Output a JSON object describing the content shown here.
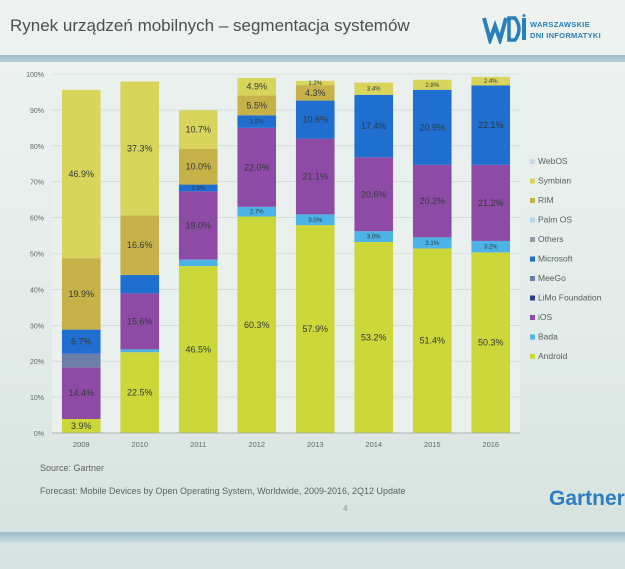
{
  "slide": {
    "title": "Rynek urządzeń mobilnych – segmentacja systemów",
    "logo_text_1": "WARSZAWSKIE",
    "logo_text_2": "DNI INFORMATYKI",
    "source": "Source: Gartner",
    "caption": "Forecast: Mobile Devices by Open Operating System, Worldwide, 2009-2016, 2Q12 Update",
    "brand": "Gartner",
    "page_number": "4",
    "colors": {
      "title_rule": "#9bbfc9",
      "brand": "#2b7dc0"
    }
  },
  "chart_data": {
    "type": "bar",
    "stacked": true,
    "categories": [
      "2009",
      "2010",
      "2011",
      "2012",
      "2013",
      "2014",
      "2015",
      "2016"
    ],
    "ylim": [
      0,
      100
    ],
    "yticks": [
      "0%",
      "10%",
      "20%",
      "30%",
      "40%",
      "50%",
      "60%",
      "70%",
      "80%",
      "90%",
      "100%"
    ],
    "legend_position": "right",
    "series": [
      {
        "name": "Android",
        "color": "#ccd83a",
        "values": [
          3.9,
          22.5,
          46.5,
          60.3,
          57.9,
          53.2,
          51.4,
          50.3
        ],
        "labels": [
          "3.9%",
          "22.5%",
          "46.5%",
          "60.3%",
          "57.9%",
          "53.2%",
          "51.4%",
          "50.3%"
        ]
      },
      {
        "name": "Bada",
        "color": "#4cb3e6",
        "values": [
          0,
          0.8,
          1.8,
          2.7,
          3.0,
          3.0,
          3.1,
          3.2
        ],
        "labels": [
          "",
          "",
          "",
          "2.7%",
          "3.0%",
          "3.0%",
          "3.1%",
          "3.2%"
        ]
      },
      {
        "name": "iOS",
        "color": "#8e4ba6",
        "values": [
          14.4,
          15.6,
          19.0,
          22.0,
          21.1,
          20.6,
          20.2,
          21.2
        ],
        "labels": [
          "14.4%",
          "15.6%",
          "19.0%",
          "22.0%",
          "21.1%",
          "20.6%",
          "20.2%",
          "21.2%"
        ]
      },
      {
        "name": "LiMo Foundation",
        "color": "#2b3c8c",
        "values": [
          0,
          0,
          0,
          0,
          0,
          0,
          0,
          0
        ],
        "labels": [
          "",
          "",
          "",
          "",
          "",
          "",
          "",
          ""
        ]
      },
      {
        "name": "MeeGo",
        "color": "#6a7fa8",
        "values": [
          3.8,
          0,
          0,
          0,
          0,
          0,
          0,
          0
        ],
        "labels": [
          "",
          "",
          "",
          "",
          "",
          "",
          "",
          ""
        ]
      },
      {
        "name": "Microsoft",
        "color": "#1f6ed0",
        "values": [
          6.7,
          5.1,
          1.9,
          3.5,
          10.6,
          17.4,
          20.9,
          22.1
        ],
        "labels": [
          "6.7%",
          "",
          "1.9%",
          "3.5%",
          "10.6%",
          "17.4%",
          "20.9%",
          "22.1%"
        ]
      },
      {
        "name": "Others",
        "color": "#8f9ca8",
        "values": [
          0,
          0,
          0,
          0,
          0,
          0,
          0,
          0
        ],
        "labels": [
          "",
          "",
          "",
          "",
          "",
          "",
          "",
          ""
        ]
      },
      {
        "name": "Palm OS",
        "color": "#b6d7e8",
        "values": [
          0,
          0,
          0,
          0,
          0,
          0,
          0,
          0
        ],
        "labels": [
          "",
          "",
          "",
          "",
          "",
          "",
          "",
          ""
        ]
      },
      {
        "name": "RIM",
        "color": "#c7b24a",
        "values": [
          19.9,
          16.6,
          10.0,
          5.5,
          4.3,
          0,
          0,
          0
        ],
        "labels": [
          "19.9%",
          "16.6%",
          "10.0%",
          "5.5%",
          "4.3%",
          "",
          "",
          ""
        ]
      },
      {
        "name": "Symbian",
        "color": "#d9d45c",
        "values": [
          46.9,
          37.3,
          10.7,
          4.9,
          1.2,
          3.4,
          2.8,
          2.4
        ],
        "labels": [
          "46.9%",
          "37.3%",
          "10.7%",
          "4.9%",
          "1.2%",
          "3.4%",
          "2.8%",
          "2.4%"
        ]
      },
      {
        "name": "WebOS",
        "color": "#c9dbe4",
        "values": [
          0,
          0,
          0,
          0,
          0,
          0,
          0,
          0
        ],
        "labels": [
          "",
          "",
          "",
          "",
          "",
          "",
          "",
          ""
        ]
      }
    ],
    "legend_order": [
      "WebOS",
      "Symbian",
      "RIM",
      "Palm OS",
      "Others",
      "Microsoft",
      "MeeGo",
      "LiMo Foundation",
      "iOS",
      "Bada",
      "Android"
    ]
  }
}
